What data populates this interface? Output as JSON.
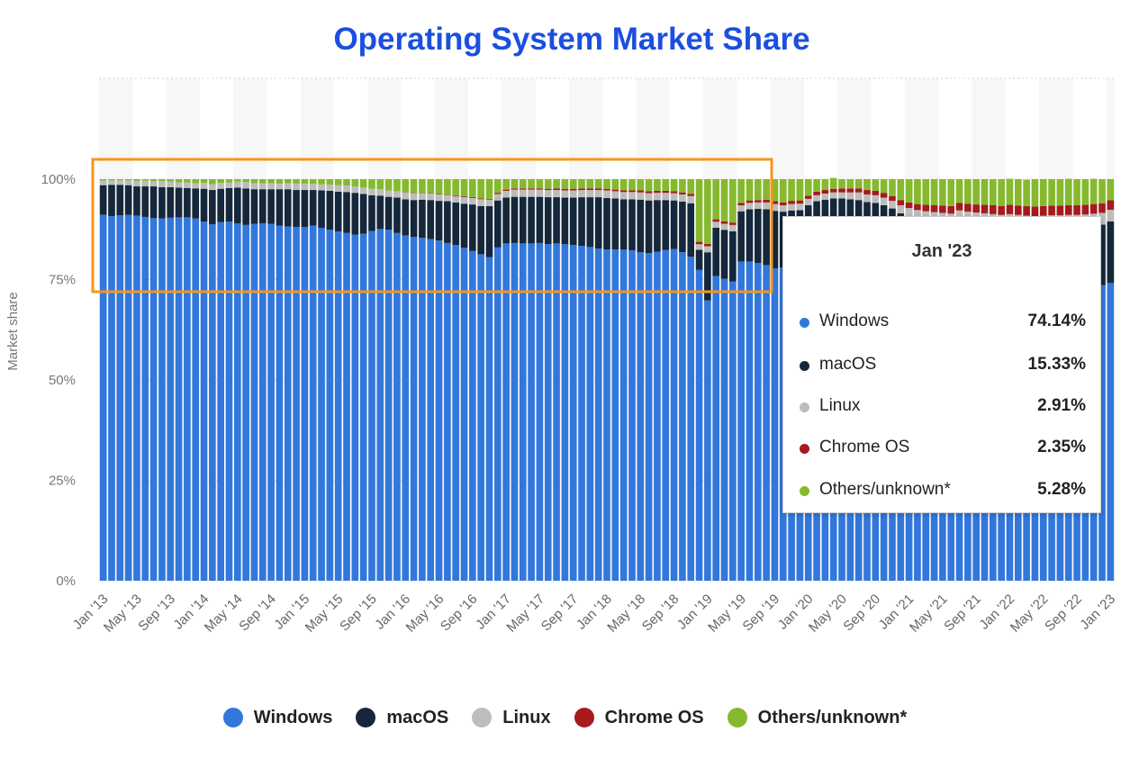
{
  "chart_data": {
    "type": "bar",
    "stacked": true,
    "title": "Operating System Market Share",
    "ylabel": "Market share",
    "ylim": [
      0,
      100
    ],
    "y_tick_labels": [
      "0%",
      "25%",
      "50%",
      "75%",
      "100%"
    ],
    "x_tick_labels": [
      "Jan '13",
      "May '13",
      "Sep '13",
      "Jan '14",
      "May '14",
      "Sep '14",
      "Jan '15",
      "May '15",
      "Sep '15",
      "Jan '16",
      "May '16",
      "Sep '16",
      "Jan '17",
      "May '17",
      "Sep '17",
      "Jan '18",
      "May '18",
      "Sep '18",
      "Jan '19",
      "May '19",
      "Sep '19",
      "Jan '20",
      "May '20",
      "Sep '20",
      "Jan '21",
      "May '21",
      "Sep '21",
      "Jan '22",
      "May '22",
      "Sep '22",
      "Jan '23"
    ],
    "categories": [
      "Jan '13",
      "Feb '13",
      "Mar '13",
      "Apr '13",
      "May '13",
      "Jun '13",
      "Jul '13",
      "Aug '13",
      "Sep '13",
      "Oct '13",
      "Nov '13",
      "Dec '13",
      "Jan '14",
      "Feb '14",
      "Mar '14",
      "Apr '14",
      "May '14",
      "Jun '14",
      "Jul '14",
      "Aug '14",
      "Sep '14",
      "Oct '14",
      "Nov '14",
      "Dec '14",
      "Jan '15",
      "Feb '15",
      "Mar '15",
      "Apr '15",
      "May '15",
      "Jun '15",
      "Jul '15",
      "Aug '15",
      "Sep '15",
      "Oct '15",
      "Nov '15",
      "Dec '15",
      "Jan '16",
      "Feb '16",
      "Mar '16",
      "Apr '16",
      "May '16",
      "Jun '16",
      "Jul '16",
      "Aug '16",
      "Sep '16",
      "Oct '16",
      "Nov '16",
      "Dec '16",
      "Jan '17",
      "Feb '17",
      "Mar '17",
      "Apr '17",
      "May '17",
      "Jun '17",
      "Jul '17",
      "Aug '17",
      "Sep '17",
      "Oct '17",
      "Nov '17",
      "Dec '17",
      "Jan '18",
      "Feb '18",
      "Mar '18",
      "Apr '18",
      "May '18",
      "Jun '18",
      "Jul '18",
      "Aug '18",
      "Sep '18",
      "Oct '18",
      "Nov '18",
      "Dec '18",
      "Jan '19",
      "Feb '19",
      "Mar '19",
      "Apr '19",
      "May '19",
      "Jun '19",
      "Jul '19",
      "Aug '19",
      "Sep '19",
      "Oct '19",
      "Nov '19",
      "Dec '19",
      "Jan '20",
      "Feb '20",
      "Mar '20",
      "Apr '20",
      "May '20",
      "Jun '20",
      "Jul '20",
      "Aug '20",
      "Sep '20",
      "Oct '20",
      "Nov '20",
      "Dec '20",
      "Jan '21",
      "Feb '21",
      "Mar '21",
      "Apr '21",
      "May '21",
      "Jun '21",
      "Jul '21",
      "Aug '21",
      "Sep '21",
      "Oct '21",
      "Nov '21",
      "Dec '21",
      "Jan '22",
      "Feb '22",
      "Mar '22",
      "Apr '22",
      "May '22",
      "Jun '22",
      "Jul '22",
      "Aug '22",
      "Sep '22",
      "Oct '22",
      "Nov '22",
      "Dec '22",
      "Jan '23"
    ],
    "series": [
      {
        "name": "Windows",
        "color": "#3277dc",
        "values": [
          91.1,
          90.8,
          91.0,
          91.1,
          90.9,
          90.6,
          90.3,
          90.2,
          90.4,
          90.5,
          90.5,
          90.2,
          89.4,
          88.8,
          89.3,
          89.4,
          89.0,
          88.6,
          88.9,
          89.0,
          88.9,
          88.4,
          88.2,
          88.1,
          88.1,
          88.4,
          87.9,
          87.4,
          87.0,
          86.6,
          86.2,
          86.4,
          87.1,
          87.6,
          87.4,
          86.6,
          86.0,
          85.6,
          85.4,
          85.1,
          84.7,
          84.1,
          83.6,
          82.9,
          82.1,
          81.3,
          80.6,
          83.0,
          84.0,
          84.1,
          84.0,
          84.0,
          84.1,
          83.8,
          84.0,
          83.8,
          83.6,
          83.4,
          83.1,
          82.7,
          82.5,
          82.5,
          82.5,
          82.3,
          81.8,
          81.6,
          81.9,
          82.4,
          82.6,
          81.8,
          80.7,
          77.4,
          69.8,
          75.9,
          75.2,
          74.5,
          79.5,
          79.5,
          79.1,
          78.6,
          77.8,
          78.0,
          78.8,
          79.4,
          83.0,
          86.5,
          88.6,
          88.9,
          89.0,
          88.8,
          87.8,
          86.0,
          84.9,
          82.6,
          80.1,
          77.2,
          75.7,
          74.6,
          73.9,
          73.3,
          72.8,
          72.2,
          73.8,
          73.1,
          72.7,
          71.8,
          71.3,
          71.1,
          71.5,
          71.2,
          70.8,
          70.7,
          71.0,
          71.4,
          71.7,
          72.1,
          72.4,
          72.8,
          73.2,
          73.6,
          74.14
        ]
      },
      {
        "name": "macOS",
        "color": "#15273a",
        "values": [
          7.4,
          7.8,
          7.6,
          7.4,
          7.3,
          7.6,
          7.9,
          7.8,
          7.6,
          7.4,
          7.3,
          7.5,
          8.2,
          8.5,
          8.3,
          8.4,
          8.9,
          9.1,
          8.6,
          8.5,
          8.6,
          9.1,
          9.3,
          9.2,
          9.2,
          8.9,
          9.3,
          9.7,
          9.9,
          10.2,
          10.4,
          9.9,
          8.9,
          8.3,
          8.2,
          8.8,
          9.0,
          9.2,
          9.5,
          9.7,
          9.9,
          10.4,
          10.6,
          11.0,
          11.6,
          12.0,
          12.7,
          11.7,
          11.4,
          11.5,
          11.6,
          11.6,
          11.5,
          11.7,
          11.5,
          11.6,
          11.8,
          12.1,
          12.4,
          12.8,
          12.8,
          12.7,
          12.5,
          12.7,
          13.1,
          13.1,
          12.9,
          12.4,
          12.1,
          12.6,
          13.3,
          5.0,
          12.0,
          12.0,
          12.2,
          12.5,
          12.5,
          13.0,
          13.5,
          13.9,
          14.3,
          13.9,
          13.4,
          12.9,
          10.5,
          8.0,
          6.3,
          6.3,
          6.2,
          6.2,
          7.0,
          8.3,
          9.2,
          10.9,
          12.6,
          14.3,
          15.1,
          15.6,
          16.0,
          16.3,
          16.6,
          16.9,
          16.1,
          16.4,
          16.6,
          17.2,
          17.5,
          17.5,
          17.2,
          17.3,
          17.5,
          17.5,
          17.2,
          16.9,
          16.6,
          16.2,
          15.9,
          15.6,
          15.3,
          15.1,
          15.33
        ]
      },
      {
        "name": "Linux",
        "color": "#bdbdbd",
        "values": [
          1.2,
          1.1,
          1.1,
          1.2,
          1.3,
          1.4,
          1.3,
          1.5,
          1.4,
          1.3,
          1.4,
          1.3,
          1.5,
          1.4,
          1.5,
          1.4,
          1.5,
          1.6,
          1.5,
          1.5,
          1.5,
          1.4,
          1.5,
          1.6,
          1.6,
          1.5,
          1.5,
          1.5,
          1.6,
          1.6,
          1.6,
          1.6,
          1.6,
          1.6,
          1.6,
          1.6,
          1.7,
          1.7,
          1.6,
          1.6,
          1.6,
          1.6,
          1.6,
          1.6,
          1.6,
          1.7,
          1.6,
          1.6,
          1.7,
          1.8,
          1.8,
          1.8,
          1.8,
          1.8,
          1.8,
          1.8,
          1.8,
          1.8,
          1.8,
          1.8,
          1.9,
          1.8,
          1.8,
          1.8,
          1.8,
          1.8,
          1.8,
          1.8,
          1.8,
          1.8,
          1.8,
          1.4,
          1.5,
          1.5,
          1.5,
          1.6,
          1.5,
          1.6,
          1.6,
          1.7,
          1.7,
          1.6,
          1.6,
          1.6,
          1.6,
          1.5,
          1.5,
          1.5,
          1.5,
          1.7,
          1.9,
          1.9,
          1.9,
          1.9,
          1.9,
          2.0,
          2.0,
          2.1,
          2.1,
          2.2,
          2.2,
          2.3,
          2.3,
          2.4,
          2.4,
          2.5,
          2.5,
          2.5,
          2.6,
          2.6,
          2.6,
          2.6,
          2.7,
          2.7,
          2.7,
          2.8,
          2.8,
          2.8,
          2.9,
          2.9,
          2.91
        ]
      },
      {
        "name": "Chrome OS",
        "color": "#a61a1e",
        "values": [
          0,
          0,
          0,
          0,
          0,
          0,
          0,
          0,
          0,
          0,
          0,
          0,
          0,
          0,
          0,
          0,
          0,
          0,
          0,
          0,
          0,
          0,
          0,
          0,
          0,
          0,
          0,
          0,
          0,
          0,
          0,
          0,
          0,
          0,
          0,
          0,
          0.1,
          0.1,
          0.1,
          0.1,
          0.1,
          0.1,
          0.2,
          0.2,
          0.2,
          0.2,
          0.2,
          0.3,
          0.3,
          0.3,
          0.3,
          0.3,
          0.3,
          0.3,
          0.4,
          0.4,
          0.4,
          0.4,
          0.4,
          0.4,
          0.4,
          0.4,
          0.4,
          0.4,
          0.5,
          0.5,
          0.5,
          0.5,
          0.5,
          0.5,
          0.5,
          0.6,
          0.6,
          0.6,
          0.6,
          0.6,
          0.6,
          0.6,
          0.6,
          0.7,
          0.7,
          0.7,
          0.8,
          0.8,
          0.8,
          0.9,
          0.9,
          0.9,
          1.0,
          1.0,
          1.0,
          1.1,
          1.1,
          1.2,
          1.2,
          1.3,
          1.4,
          1.5,
          1.6,
          1.7,
          1.8,
          1.9,
          1.9,
          2.0,
          2.0,
          2.1,
          2.2,
          2.2,
          2.3,
          2.3,
          2.4,
          2.4,
          2.4,
          2.4,
          2.4,
          2.4,
          2.4,
          2.4,
          2.4,
          2.4,
          2.35
        ]
      },
      {
        "name": "Others/unknown*",
        "color": "#86b92e",
        "values": [
          0.3,
          0.3,
          0.3,
          0.3,
          0.5,
          0.4,
          0.5,
          0.5,
          0.6,
          0.8,
          0.8,
          1.0,
          0.9,
          1.3,
          0.9,
          0.8,
          0.6,
          0.7,
          1.0,
          1.0,
          1.0,
          1.1,
          1.0,
          1.1,
          1.1,
          1.2,
          1.3,
          1.4,
          1.5,
          1.6,
          1.8,
          2.1,
          2.4,
          2.5,
          2.8,
          3.0,
          3.2,
          3.4,
          3.4,
          3.5,
          3.7,
          3.8,
          4.0,
          4.3,
          4.5,
          4.8,
          4.9,
          3.4,
          2.6,
          2.3,
          2.3,
          2.3,
          2.3,
          2.4,
          2.3,
          2.4,
          2.4,
          2.3,
          2.3,
          2.3,
          2.4,
          2.6,
          2.8,
          2.8,
          2.8,
          3.0,
          2.9,
          2.9,
          3.0,
          3.3,
          3.7,
          15.6,
          16.1,
          10.0,
          10.5,
          10.8,
          5.9,
          5.3,
          5.2,
          5.1,
          5.5,
          5.8,
          5.4,
          5.3,
          4.1,
          3.1,
          2.7,
          2.7,
          2.3,
          2.3,
          2.3,
          2.7,
          2.9,
          3.4,
          4.2,
          5.2,
          5.8,
          6.2,
          6.4,
          6.5,
          6.6,
          6.7,
          5.9,
          6.1,
          6.3,
          6.4,
          6.5,
          6.7,
          6.5,
          6.6,
          6.6,
          6.8,
          6.7,
          6.6,
          6.6,
          6.6,
          6.5,
          6.4,
          6.3,
          6.0,
          5.28
        ]
      }
    ]
  },
  "tooltip": {
    "title": "Jan '23",
    "rows": [
      {
        "name": "Windows",
        "value": "74.14%",
        "color": "#3277dc"
      },
      {
        "name": "macOS",
        "value": "15.33%",
        "color": "#15273a"
      },
      {
        "name": "Linux",
        "value": "2.91%",
        "color": "#bdbdbd"
      },
      {
        "name": "Chrome OS",
        "value": "2.35%",
        "color": "#a61a1e"
      },
      {
        "name": "Others/unknown*",
        "value": "5.28%",
        "color": "#86b92e"
      }
    ]
  },
  "legend": [
    {
      "name": "Windows",
      "color": "#3277dc"
    },
    {
      "name": "macOS",
      "color": "#15273a"
    },
    {
      "name": "Linux",
      "color": "#bdbdbd"
    },
    {
      "name": "Chrome OS",
      "color": "#a61a1e"
    },
    {
      "name": "Others/unknown*",
      "color": "#86b92e"
    }
  ],
  "highlight_color": "#f7941d"
}
